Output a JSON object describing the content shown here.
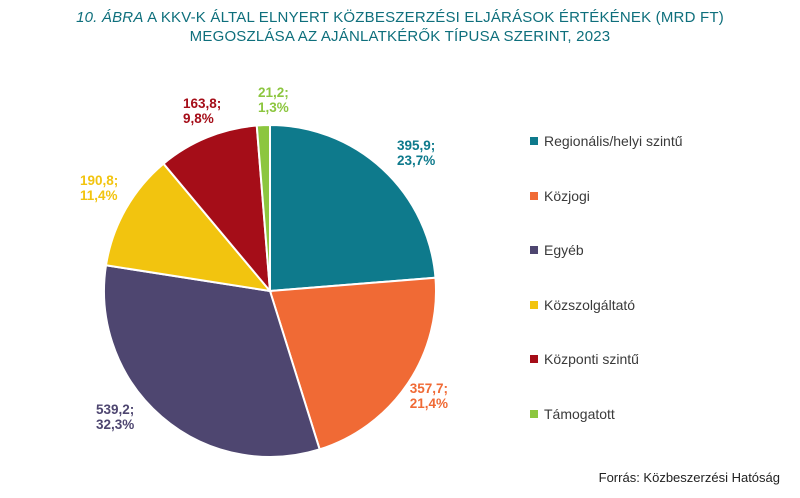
{
  "title": {
    "figure_label": "10. ÁBRA",
    "line1_rest": " A KKV-K ÁLTAL ELNYERT KÖZBESZERZÉSI ELJÁRÁSOK ÉRTÉKÉNEK (MRD FT)",
    "line2": "MEGOSZLÁSA AZ AJÁNLATKÉRŐK TÍPUSA SZERINT, 2023"
  },
  "source": "Forrás: Közbeszerzési Hatóság",
  "chart_data": {
    "type": "pie",
    "title": "10. ÁBRA A KKV-K ÁLTAL ELNYERT KÖZBESZERZÉSI ELJÁRÁSOK ÉRTÉKÉNEK (MRD FT) MEGOSZLÁSA AZ AJÁNLATKÉRŐK TÍPUSA SZERINT, 2023",
    "unit": "MRD FT",
    "start_angle_deg": 0,
    "direction": "clockwise",
    "legend_position": "right",
    "slices": [
      {
        "name": "Regionális/helyi szintű",
        "value": 395.9,
        "percent": 23.7,
        "label_value": "395,9;",
        "label_percent": "23,7%",
        "color": "#0e7a8c"
      },
      {
        "name": "Közjogi",
        "value": 357.7,
        "percent": 21.4,
        "label_value": "357,7;",
        "label_percent": "21,4%",
        "color": "#f06a35"
      },
      {
        "name": "Egyéb",
        "value": 539.2,
        "percent": 32.3,
        "label_value": "539,2;",
        "label_percent": "32,3%",
        "color": "#4e4670"
      },
      {
        "name": "Közszolgáltató",
        "value": 190.8,
        "percent": 11.4,
        "label_value": "190,8;",
        "label_percent": "11,4%",
        "color": "#f2c40f"
      },
      {
        "name": "Központi szintű",
        "value": 163.8,
        "percent": 9.8,
        "label_value": "163,8;",
        "label_percent": "9,8%",
        "color": "#a50d18"
      },
      {
        "name": "Támogatott",
        "value": 21.2,
        "percent": 1.3,
        "label_value": "21,2;",
        "label_percent": "1,3%",
        "color": "#8cc63f"
      }
    ]
  }
}
